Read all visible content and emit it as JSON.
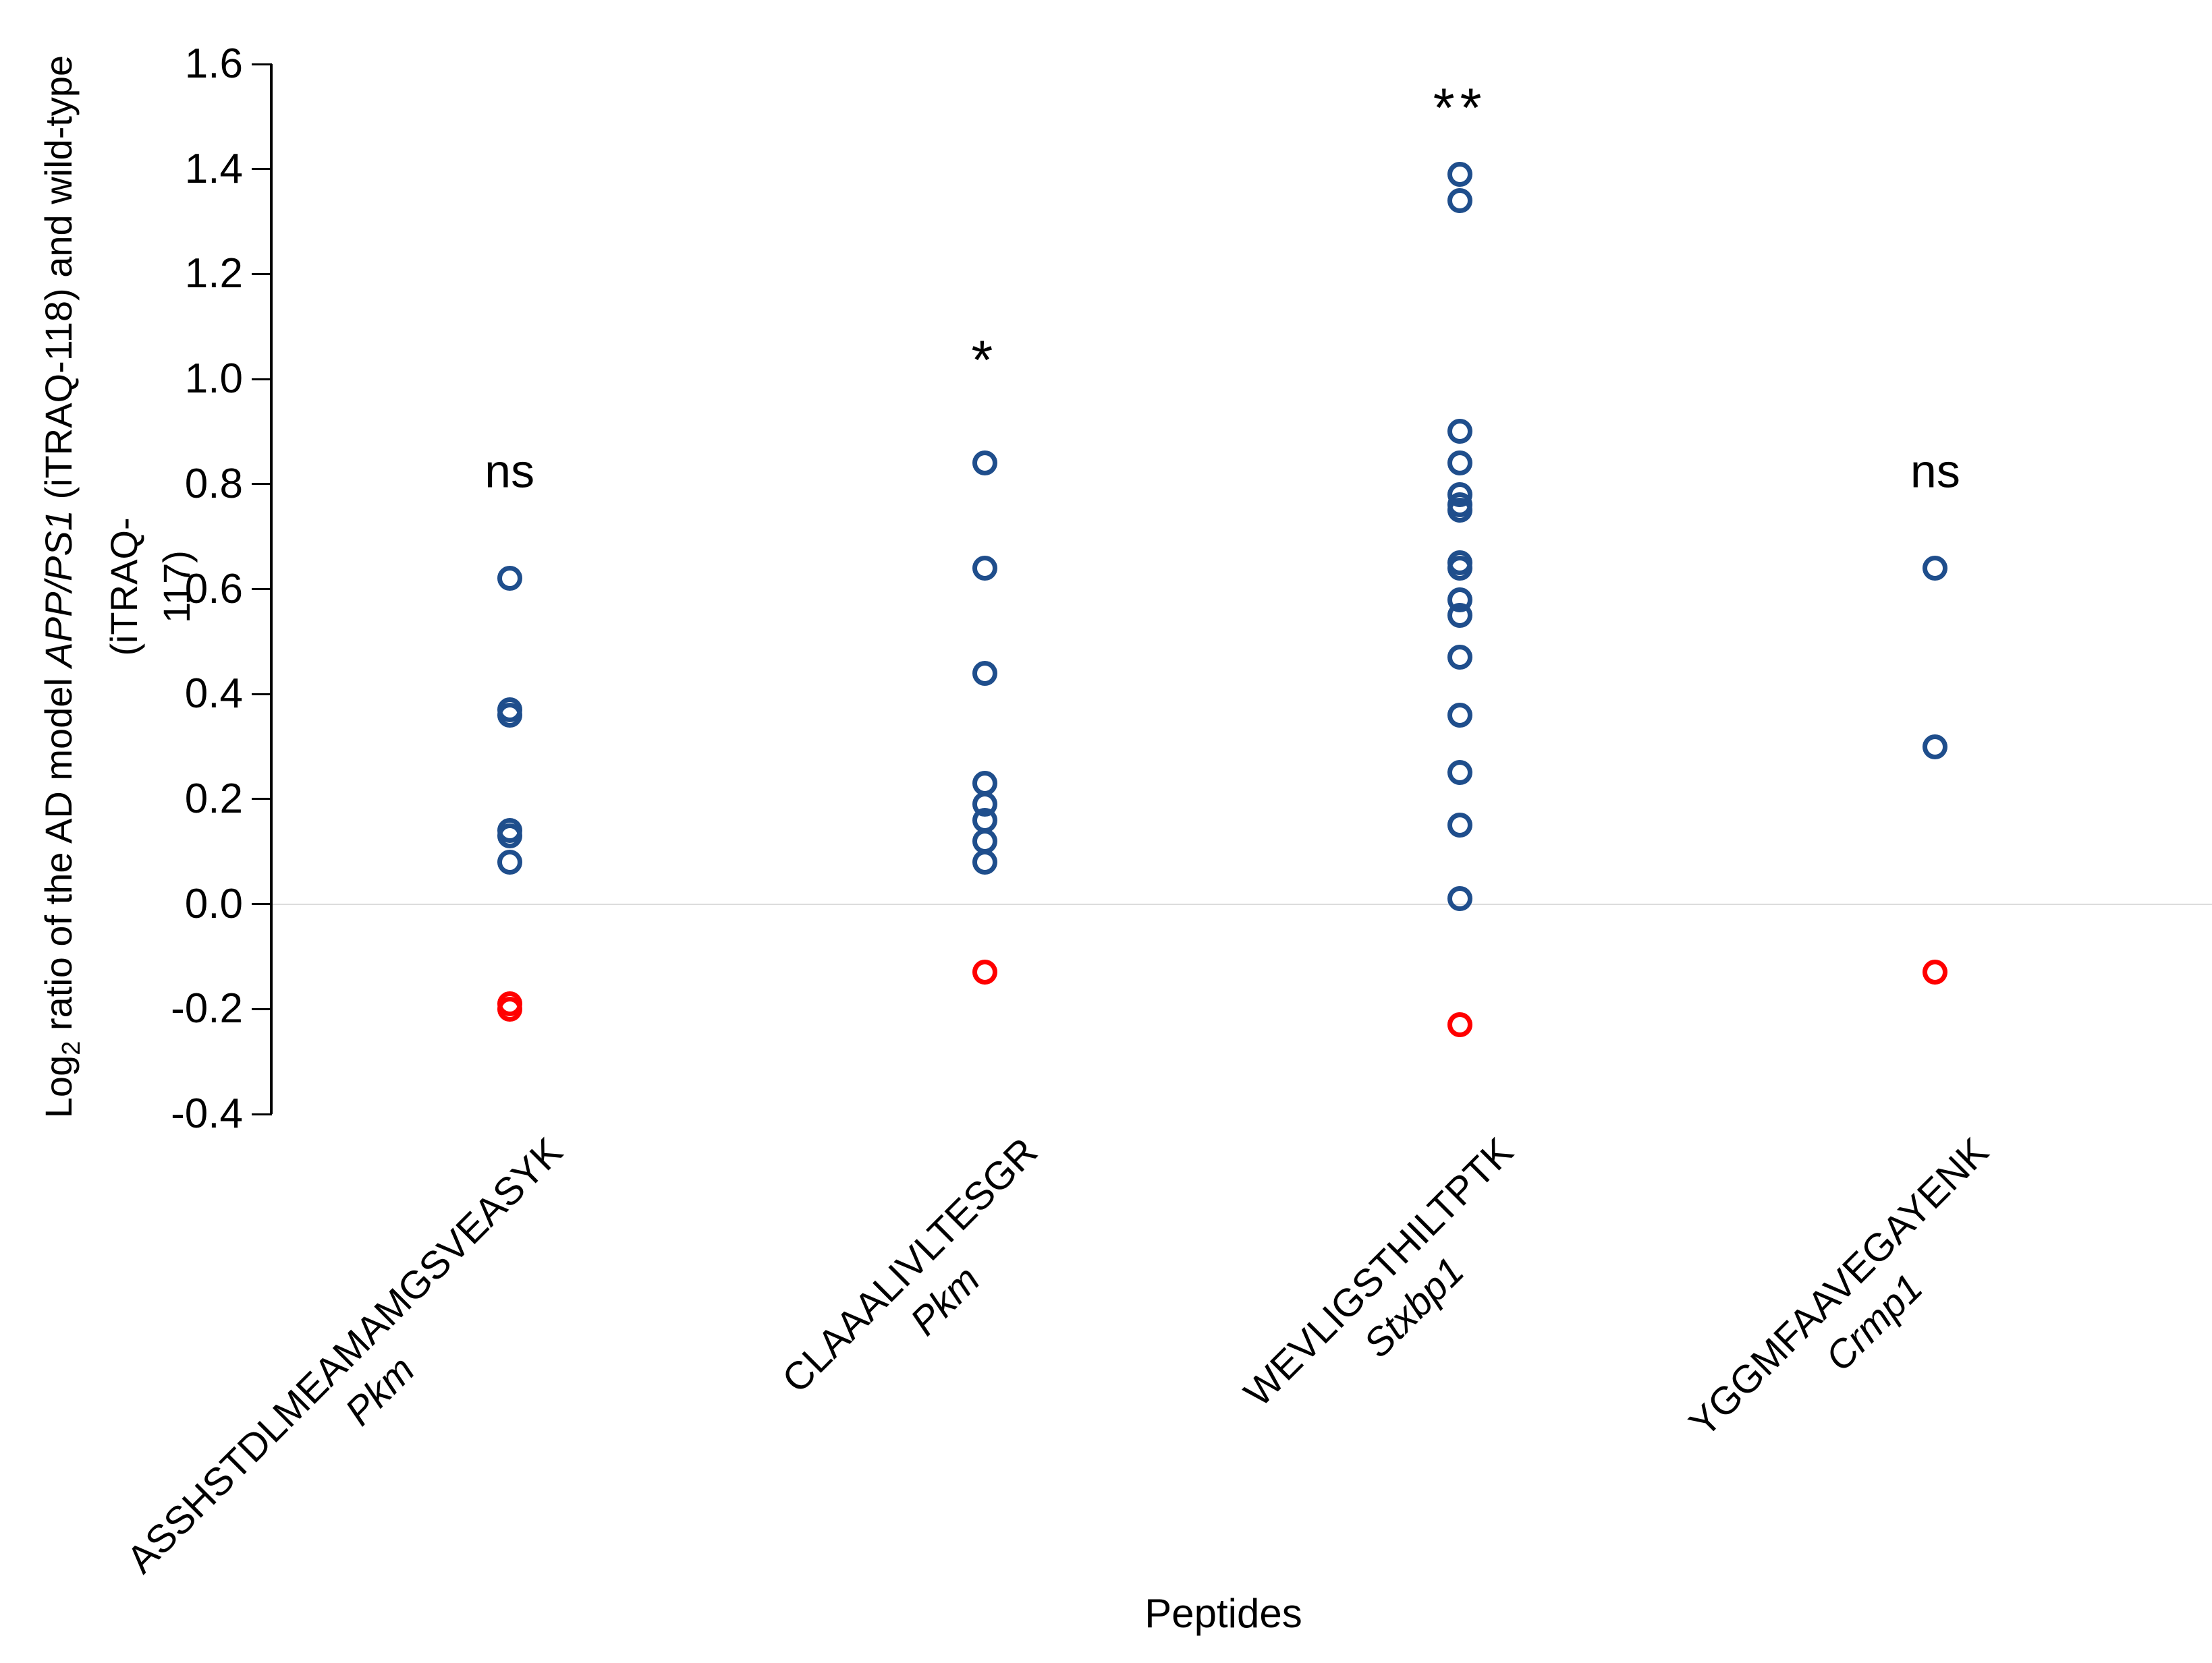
{
  "figure": {
    "x_axis_title": "Peptides",
    "y_label": {
      "prefix": "Log",
      "sub": "2",
      "mid": " ratio of the AD model  ",
      "italic": "APP/PS1",
      "rest": " (iTRAQ-118) and wild-type (iTRAQ-",
      "line2": "117)"
    }
  },
  "chart_data": {
    "type": "scatter",
    "title": "",
    "xlabel": "Peptides",
    "ylabel": "Log2 ratio of the AD model APP/PS1 (iTRAQ-118) and wild-type (iTRAQ-117)",
    "ylim": [
      -0.4,
      1.6
    ],
    "yticks": [
      1.6,
      1.4,
      1.2,
      1.0,
      0.8,
      0.6,
      0.4,
      0.2,
      0.0,
      -0.2,
      -0.4
    ],
    "grid": "horizontal zero-line only",
    "legend": "none",
    "point_colors": {
      "blue": "#1F4E8C",
      "red": "#FF0000"
    },
    "categories": [
      {
        "peptide": "ASSHSTDLMEAMAMGSVEASYK",
        "gene": "Pkm",
        "significance": "ns",
        "sig_y": 0.82,
        "blue_points": [
          0.62,
          0.37,
          0.36,
          0.14,
          0.13,
          0.08
        ],
        "red_points": [
          -0.19,
          -0.2
        ]
      },
      {
        "peptide": "CLAAALIVLTESGR",
        "gene": "Pkm",
        "significance": "*",
        "sig_y": 1.03,
        "blue_points": [
          0.84,
          0.64,
          0.44,
          0.23,
          0.19,
          0.16,
          0.12,
          0.08
        ],
        "red_points": [
          -0.13
        ]
      },
      {
        "peptide": "WEVLIGSTHILTPTK",
        "gene": "Stxbp1",
        "significance": "**",
        "sig_y": 1.51,
        "blue_points": [
          1.39,
          1.34,
          0.9,
          0.84,
          0.78,
          0.76,
          0.75,
          0.65,
          0.64,
          0.58,
          0.55,
          0.47,
          0.36,
          0.25,
          0.15,
          0.01
        ],
        "red_points": [
          -0.23
        ]
      },
      {
        "peptide": "YGGMFAAVEGAYENK",
        "gene": "Crmp1",
        "significance": "ns",
        "sig_y": 0.82,
        "blue_points": [
          0.64,
          0.3
        ],
        "red_points": [
          -0.13
        ]
      }
    ]
  }
}
